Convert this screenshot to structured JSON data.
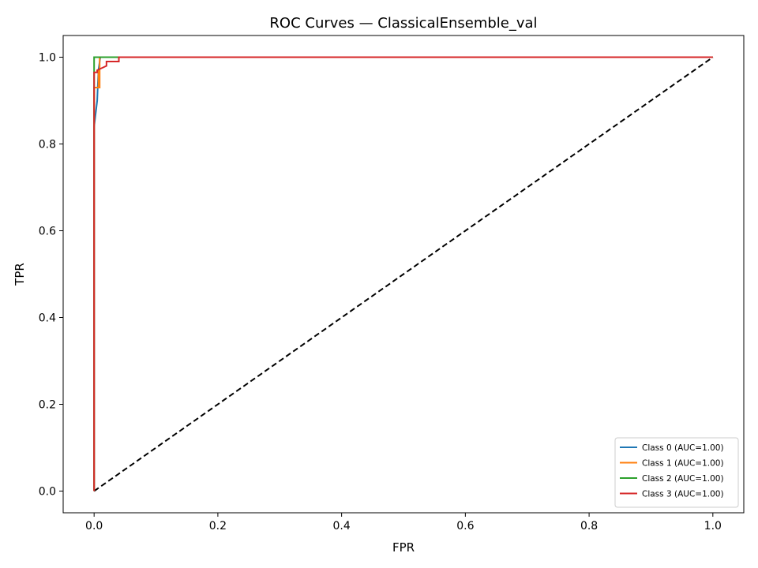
{
  "chart_data": {
    "type": "line",
    "title": "ROC Curves — ClassicalEnsemble_val",
    "xlabel": "FPR",
    "ylabel": "TPR",
    "xlim": [
      -0.05,
      1.05
    ],
    "ylim": [
      -0.05,
      1.05
    ],
    "xticks": [
      0.0,
      0.2,
      0.4,
      0.6,
      0.8,
      1.0
    ],
    "yticks": [
      0.0,
      0.2,
      0.4,
      0.6,
      0.8,
      1.0
    ],
    "xtick_labels": [
      "0.0",
      "0.2",
      "0.4",
      "0.6",
      "0.8",
      "1.0"
    ],
    "ytick_labels": [
      "0.0",
      "0.2",
      "0.4",
      "0.6",
      "0.8",
      "1.0"
    ],
    "grid": false,
    "legend_position": "lower right",
    "series": [
      {
        "name": "Class 0 (AUC=1.00)",
        "color": "#1f77b4",
        "x": [
          0.0,
          0.0,
          0.0,
          0.005,
          0.007,
          0.01,
          1.0
        ],
        "y": [
          0.0,
          0.7,
          0.84,
          0.9,
          0.97,
          1.0,
          1.0
        ]
      },
      {
        "name": "Class 1 (AUC=1.00)",
        "color": "#ff7f0e",
        "x": [
          0.0,
          0.0,
          0.007,
          0.007,
          0.007,
          0.009,
          0.009,
          1.0
        ],
        "y": [
          0.0,
          0.93,
          0.93,
          0.97,
          0.93,
          0.93,
          1.0,
          1.0
        ]
      },
      {
        "name": "Class 2 (AUC=1.00)",
        "color": "#2ca02c",
        "x": [
          0.0,
          0.0,
          1.0
        ],
        "y": [
          0.0,
          1.0,
          1.0
        ]
      },
      {
        "name": "Class 3 (AUC=1.00)",
        "color": "#d62728",
        "x": [
          0.0,
          0.0,
          0.005,
          0.005,
          0.02,
          0.02,
          0.04,
          0.04,
          1.0
        ],
        "y": [
          0.0,
          0.965,
          0.965,
          0.97,
          0.98,
          0.99,
          0.99,
          1.0,
          1.0
        ]
      }
    ],
    "reference_line": {
      "color": "#000000",
      "style": "dashed",
      "x": [
        0.0,
        1.0
      ],
      "y": [
        0.0,
        1.0
      ]
    }
  }
}
